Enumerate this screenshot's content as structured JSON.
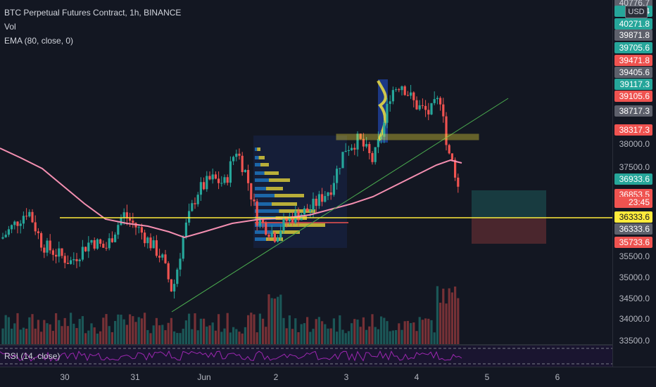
{
  "header": {
    "symbol_line": "BTC Perpetual Futures Contract, 1h, BINANCE",
    "vol_label": "Vol",
    "ema_label": "EMA (80, close, 0)"
  },
  "rsi": {
    "label": "RSI (14, close)"
  },
  "currency": "USD",
  "price_labels": [
    {
      "text": "40776.7",
      "color": "#d1d4dc",
      "bg": "#5d606b"
    },
    {
      "text": "4",
      "color": "#ffffff",
      "bg": "#26a69a"
    },
    {
      "text": "40271.8",
      "color": "#ffffff",
      "bg": "#26a69a"
    },
    {
      "text": "39871.8",
      "color": "#ffffff",
      "bg": "#5d606b"
    },
    {
      "text": "39705.6",
      "color": "#ffffff",
      "bg": "#26a69a"
    },
    {
      "text": "39471.8",
      "color": "#ffffff",
      "bg": "#ef5350"
    },
    {
      "text": "39405.6",
      "color": "#ffffff",
      "bg": "#5d606b"
    },
    {
      "text": "39117.3",
      "color": "#ffffff",
      "bg": "#26a69a"
    },
    {
      "text": "39105.6",
      "color": "#ffffff",
      "bg": "#ef5350"
    },
    {
      "text": "38717.3",
      "color": "#ffffff",
      "bg": "#5d606b"
    },
    {
      "text": "38317.3",
      "color": "#ffffff",
      "bg": "#ef5350"
    },
    {
      "text": "38000.0",
      "color": "#b2b5be",
      "bg": ""
    },
    {
      "text": "37500.0",
      "color": "#b2b5be",
      "bg": ""
    },
    {
      "text": "36933.6",
      "color": "#ffffff",
      "bg": "#26a69a"
    },
    {
      "text": "36853.5",
      "color": "#ffffff",
      "bg": "#ef5350"
    },
    {
      "text": "23:45",
      "color": "#ffffff",
      "bg": "#ef5350"
    },
    {
      "text": "36333.6",
      "color": "#131722",
      "bg": "#ffeb3b"
    },
    {
      "text": "36333.6",
      "color": "#ffffff",
      "bg": "#5d606b"
    },
    {
      "text": "35733.6",
      "color": "#ffffff",
      "bg": "#ef5350"
    },
    {
      "text": "35500.0",
      "color": "#b2b5be",
      "bg": ""
    },
    {
      "text": "35000.0",
      "color": "#b2b5be",
      "bg": ""
    },
    {
      "text": "34500.0",
      "color": "#b2b5be",
      "bg": ""
    },
    {
      "text": "34000.0",
      "color": "#b2b5be",
      "bg": ""
    },
    {
      "text": "33500.0",
      "color": "#b2b5be",
      "bg": ""
    }
  ],
  "time_labels": [
    "30",
    "31",
    "Jun",
    "2",
    "3",
    "4",
    "5",
    "6"
  ],
  "colors": {
    "up": "#26a69a",
    "down": "#ef5350",
    "ema": "#f48fb1",
    "trendline": "#4caf50",
    "level": "#ffeb3b",
    "rsi": "#9c27b0"
  }
}
